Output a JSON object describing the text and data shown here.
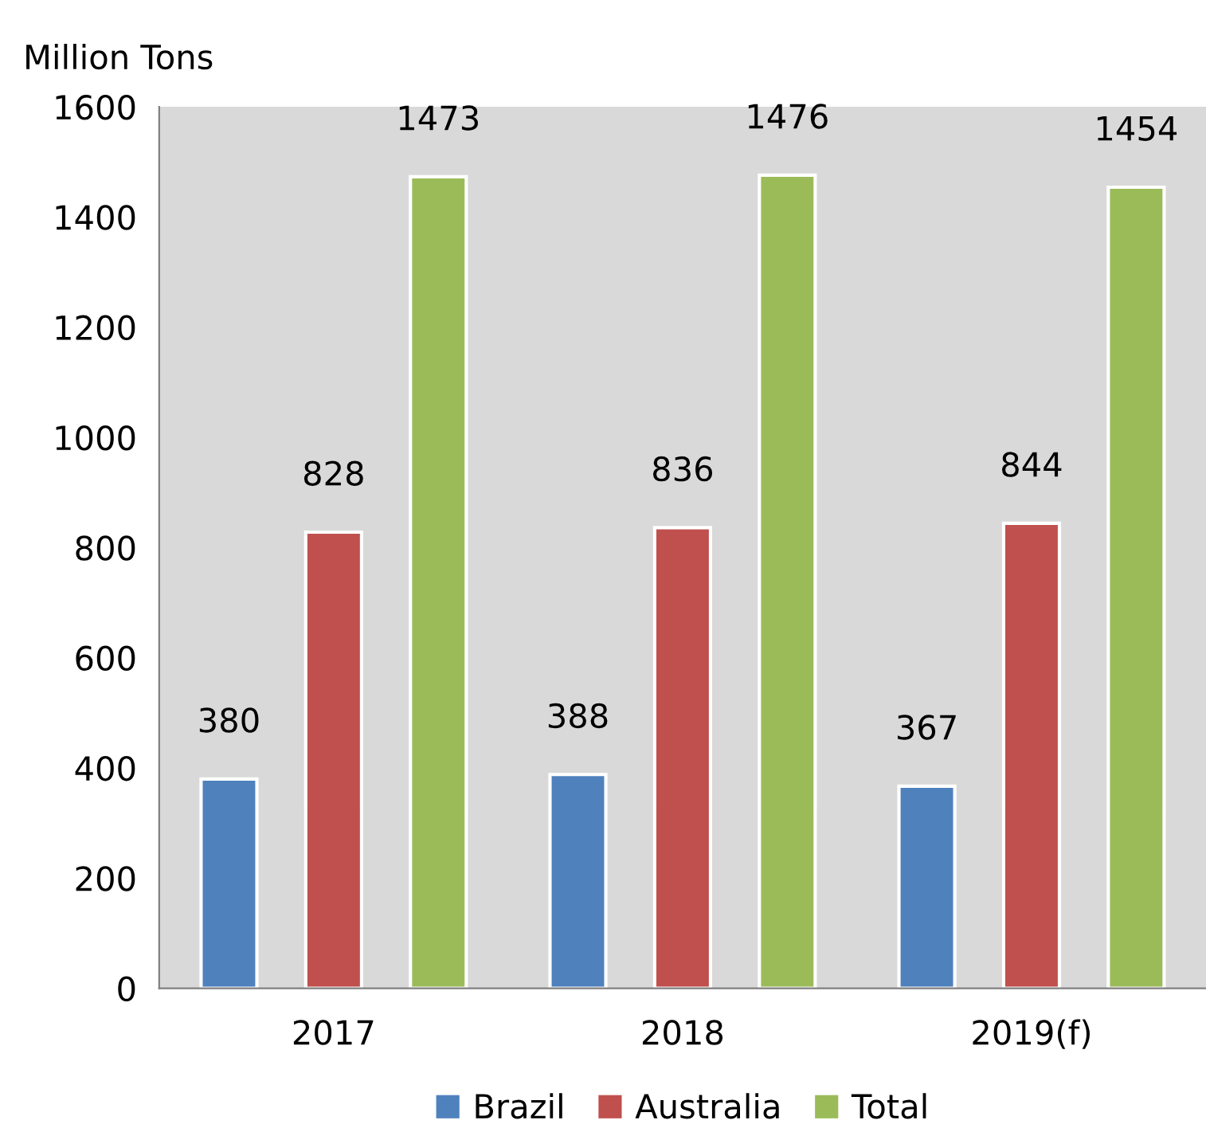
{
  "chart_data": {
    "type": "bar",
    "ylabel": "Million Tons",
    "categories": [
      "2017",
      "2018",
      "2019(f)"
    ],
    "series": [
      {
        "name": "Brazil",
        "color": "#4f81bd",
        "values": [
          380,
          388,
          367
        ]
      },
      {
        "name": "Australia",
        "color": "#c0504d",
        "values": [
          828,
          836,
          844
        ]
      },
      {
        "name": "Total",
        "color": "#9bbb59",
        "values": [
          1473,
          1476,
          1454
        ]
      }
    ],
    "ylim": [
      0,
      1600
    ],
    "yticks": [
      0,
      200,
      400,
      600,
      800,
      1000,
      1200,
      1400,
      1600
    ],
    "data_labels": true,
    "grid": false,
    "legend": "bottom"
  }
}
